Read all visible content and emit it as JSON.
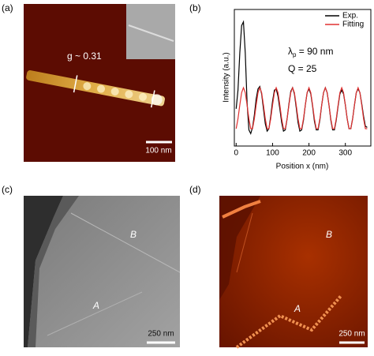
{
  "panels": [
    {
      "label": "(a)",
      "annotation": "g ~ 0.31",
      "scale_bar": "100 nm"
    },
    {
      "label": "(b)"
    },
    {
      "label": "(c)",
      "marks": [
        "B",
        "A"
      ],
      "scale_bar": "250 nm"
    },
    {
      "label": "(d)",
      "marks": [
        "B",
        "A"
      ],
      "scale_bar": "250 nm"
    }
  ],
  "chart_data": {
    "type": "line",
    "x_label": "Position x (nm)",
    "y_label": "Intensity (a.u.)",
    "annotations": {
      "lambda": "λ",
      "lambda_sub": "p",
      "lambda_rest": " = 90 nm",
      "q": "Q = 25"
    },
    "x": [
      0,
      5,
      10,
      15,
      20,
      25,
      30,
      35,
      40,
      45,
      50,
      55,
      60,
      65,
      70,
      75,
      80,
      85,
      90,
      95,
      100,
      105,
      110,
      115,
      120,
      125,
      130,
      135,
      140,
      145,
      150,
      155,
      160,
      165,
      170,
      175,
      180,
      185,
      190,
      195,
      200,
      205,
      210,
      215,
      220,
      225,
      230,
      235,
      240,
      245,
      250,
      255,
      260,
      265,
      270,
      275,
      280,
      285,
      290,
      295,
      300,
      305,
      310,
      315,
      320,
      325,
      330,
      335,
      340,
      345,
      350,
      355,
      360
    ],
    "series": [
      {
        "name": "Exp.",
        "color": "#000000",
        "values": [
          0.3,
          0.45,
          0.75,
          0.97,
          1.0,
          0.75,
          0.35,
          0.13,
          0.1,
          0.15,
          0.25,
          0.38,
          0.46,
          0.48,
          0.42,
          0.3,
          0.18,
          0.12,
          0.14,
          0.24,
          0.36,
          0.45,
          0.46,
          0.4,
          0.3,
          0.19,
          0.12,
          0.13,
          0.22,
          0.34,
          0.44,
          0.47,
          0.42,
          0.31,
          0.19,
          0.12,
          0.13,
          0.21,
          0.33,
          0.43,
          0.46,
          0.42,
          0.32,
          0.2,
          0.13,
          0.13,
          0.21,
          0.33,
          0.43,
          0.47,
          0.43,
          0.33,
          0.21,
          0.13,
          0.13,
          0.21,
          0.32,
          0.42,
          0.45,
          0.42,
          0.33,
          0.22,
          0.14,
          0.14,
          0.22,
          0.33,
          0.43,
          0.46,
          0.43,
          0.34,
          0.24,
          0.16,
          0.15
        ]
      },
      {
        "name": "Fitting",
        "color": "#e03030",
        "values": [
          0.14,
          0.22,
          0.33,
          0.43,
          0.47,
          0.43,
          0.33,
          0.22,
          0.14,
          0.14,
          0.22,
          0.33,
          0.43,
          0.47,
          0.43,
          0.33,
          0.22,
          0.14,
          0.14,
          0.22,
          0.33,
          0.43,
          0.47,
          0.43,
          0.33,
          0.22,
          0.14,
          0.14,
          0.22,
          0.33,
          0.43,
          0.47,
          0.43,
          0.33,
          0.22,
          0.14,
          0.14,
          0.22,
          0.33,
          0.43,
          0.47,
          0.43,
          0.33,
          0.22,
          0.14,
          0.14,
          0.22,
          0.33,
          0.43,
          0.47,
          0.43,
          0.33,
          0.22,
          0.14,
          0.14,
          0.22,
          0.33,
          0.43,
          0.47,
          0.43,
          0.33,
          0.22,
          0.14,
          0.14,
          0.22,
          0.33,
          0.43,
          0.47,
          0.43,
          0.33,
          0.22,
          0.14,
          0.14
        ]
      }
    ],
    "xlim": [
      -5,
      370
    ],
    "ylim": [
      0,
      1.1
    ],
    "xticks": [
      0,
      100,
      200,
      300
    ],
    "legend": "upper right"
  }
}
